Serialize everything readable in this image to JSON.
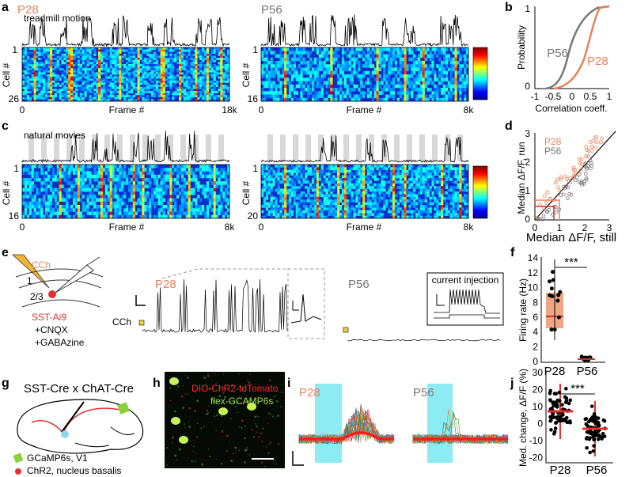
{
  "panels": {
    "a": {
      "label": "a",
      "left_title": "P28",
      "right_title": "P56",
      "trace_label": "treadmill motion",
      "ylabel": "Cell #",
      "xlabel": "Frame #",
      "left_yticks": [
        "1",
        "26"
      ],
      "left_xticks": [
        "0",
        "18k"
      ],
      "right_yticks": [
        "1",
        "16"
      ],
      "right_xticks": [
        "0",
        "8k"
      ]
    },
    "b": {
      "label": "b",
      "ylabel": "Probability",
      "xlabel": "Correlation coeff.",
      "yticks": [
        "1",
        "0"
      ],
      "xticks": [
        "-1",
        "-0.5",
        "0",
        "0.5",
        "1"
      ],
      "series": [
        "P56",
        "P28"
      ]
    },
    "c": {
      "label": "c",
      "trace_label": "natural movies",
      "ylabel": "Cell #",
      "xlabel": "Frame #",
      "left_yticks": [
        "1",
        "16"
      ],
      "left_xticks": [
        "0",
        "8k"
      ],
      "right_yticks": [
        "1",
        "20"
      ],
      "right_xticks": [
        "0",
        "8k"
      ]
    },
    "d": {
      "label": "d",
      "ylabel": "Median ΔF/F, run",
      "xlabel": "Median ΔF/F, still",
      "yticks": [
        "3",
        "2",
        "1",
        "0"
      ],
      "xticks": [
        "0",
        "1",
        "2",
        "3"
      ],
      "legend": [
        "P28",
        "P56"
      ]
    },
    "e": {
      "label": "e",
      "drug": "CCh",
      "layers": [
        "1",
        "2/3"
      ],
      "cell": "SST-Ai9",
      "treatments": [
        "+CNQX",
        "+GABAzine"
      ],
      "left_title": "P28",
      "right_title": "P56",
      "inset": "current injection",
      "marker": "CCh"
    },
    "f": {
      "label": "f",
      "ylabel": "Firing rate (Hz)",
      "yticks": [
        "14",
        "12",
        "10",
        "8",
        "6",
        "4",
        "2",
        "0"
      ],
      "categories": [
        "P28",
        "P56"
      ],
      "significance": "***"
    },
    "g": {
      "label": "g",
      "title": "SST-Cre x ChAT-Cre",
      "legend": [
        "GCaMP6s, V1",
        "ChR2, nucleus basalis"
      ]
    },
    "h": {
      "label": "h",
      "lines": [
        "DIO-ChR2-tdTomato",
        "flex-GCAMP6s"
      ]
    },
    "i": {
      "label": "i",
      "left_title": "P28",
      "right_title": "P56"
    },
    "j": {
      "label": "j",
      "ylabel": "Med. change, ΔF/F (%)",
      "yticks": [
        "30",
        "20",
        "10",
        "0",
        "-10",
        "-20"
      ],
      "categories": [
        "P28",
        "P56"
      ],
      "significance": "***"
    }
  }
}
